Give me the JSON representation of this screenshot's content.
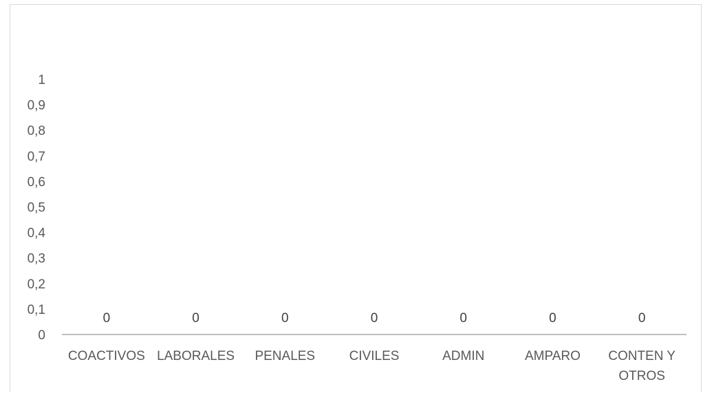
{
  "chart_data": {
    "type": "bar",
    "categories": [
      "COACTIVOS",
      "LABORALES",
      "PENALES",
      "CIVILES",
      "ADMIN",
      "AMPARO",
      "CONTEN Y OTROS"
    ],
    "category_label_lines": [
      [
        "COACTIVOS"
      ],
      [
        "LABORALES"
      ],
      [
        "PENALES"
      ],
      [
        "CIVILES"
      ],
      [
        "ADMIN"
      ],
      [
        "AMPARO"
      ],
      [
        "CONTEN Y",
        "OTROS"
      ]
    ],
    "values": [
      0,
      0,
      0,
      0,
      0,
      0,
      0
    ],
    "data_labels": [
      "0",
      "0",
      "0",
      "0",
      "0",
      "0",
      "0"
    ],
    "ylim": [
      0,
      1
    ],
    "yticks": [
      "0",
      "0,1",
      "0,2",
      "0,3",
      "0,4",
      "0,5",
      "0,6",
      "0,7",
      "0,8",
      "0,9",
      "1"
    ],
    "title": "",
    "xlabel": "",
    "ylabel": "",
    "grid": false,
    "colors": {
      "axis": "#bfbfbf",
      "text": "#595959",
      "frame": "#d9d9d9"
    }
  }
}
